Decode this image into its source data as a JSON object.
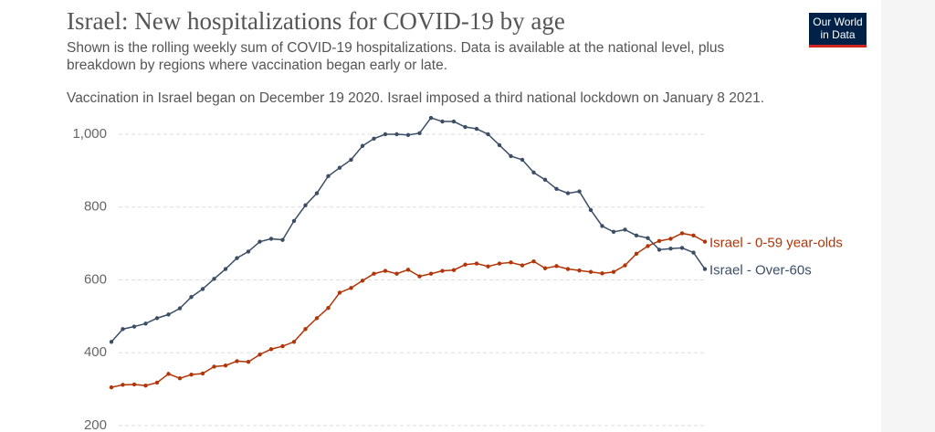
{
  "header": {
    "title": "Israel: New hospitalizations for COVID-19 by age",
    "subtitle": "Shown is the rolling weekly sum of COVID-19 hospitalizations. Data is available at the national level, plus breakdown by regions where vaccination began early or late.",
    "note": "Vaccination in Israel began on December 19 2020. Israel imposed a third national lockdown on January 8 2021.",
    "logo": [
      "Our World",
      "in Data"
    ]
  },
  "chart_data": {
    "type": "line",
    "ylim": [
      200,
      1060
    ],
    "yticks": [
      200,
      400,
      600,
      800,
      {
        "value": 1000,
        "label": "1,000"
      }
    ],
    "grid": true,
    "series": [
      {
        "name": "Israel - 0-59 year-olds",
        "color": "#b13507",
        "values": [
          305,
          312,
          313,
          310,
          318,
          342,
          330,
          340,
          343,
          362,
          365,
          377,
          375,
          395,
          410,
          418,
          430,
          465,
          495,
          523,
          565,
          578,
          598,
          617,
          625,
          617,
          628,
          610,
          617,
          625,
          627,
          642,
          645,
          637,
          645,
          648,
          640,
          651,
          632,
          638,
          630,
          626,
          622,
          618,
          622,
          640,
          672,
          693,
          707,
          713,
          728,
          722,
          705
        ]
      },
      {
        "name": "Israel - Over-60s",
        "color": "#3c4e66",
        "values": [
          430,
          465,
          472,
          480,
          495,
          505,
          522,
          553,
          575,
          603,
          630,
          660,
          678,
          705,
          713,
          710,
          762,
          805,
          838,
          885,
          908,
          930,
          968,
          988,
          1000,
          1000,
          998,
          1003,
          1045,
          1035,
          1035,
          1020,
          1015,
          1000,
          970,
          940,
          930,
          895,
          875,
          850,
          838,
          843,
          792,
          748,
          732,
          738,
          722,
          715,
          683,
          686,
          688,
          675,
          630
        ]
      }
    ]
  }
}
